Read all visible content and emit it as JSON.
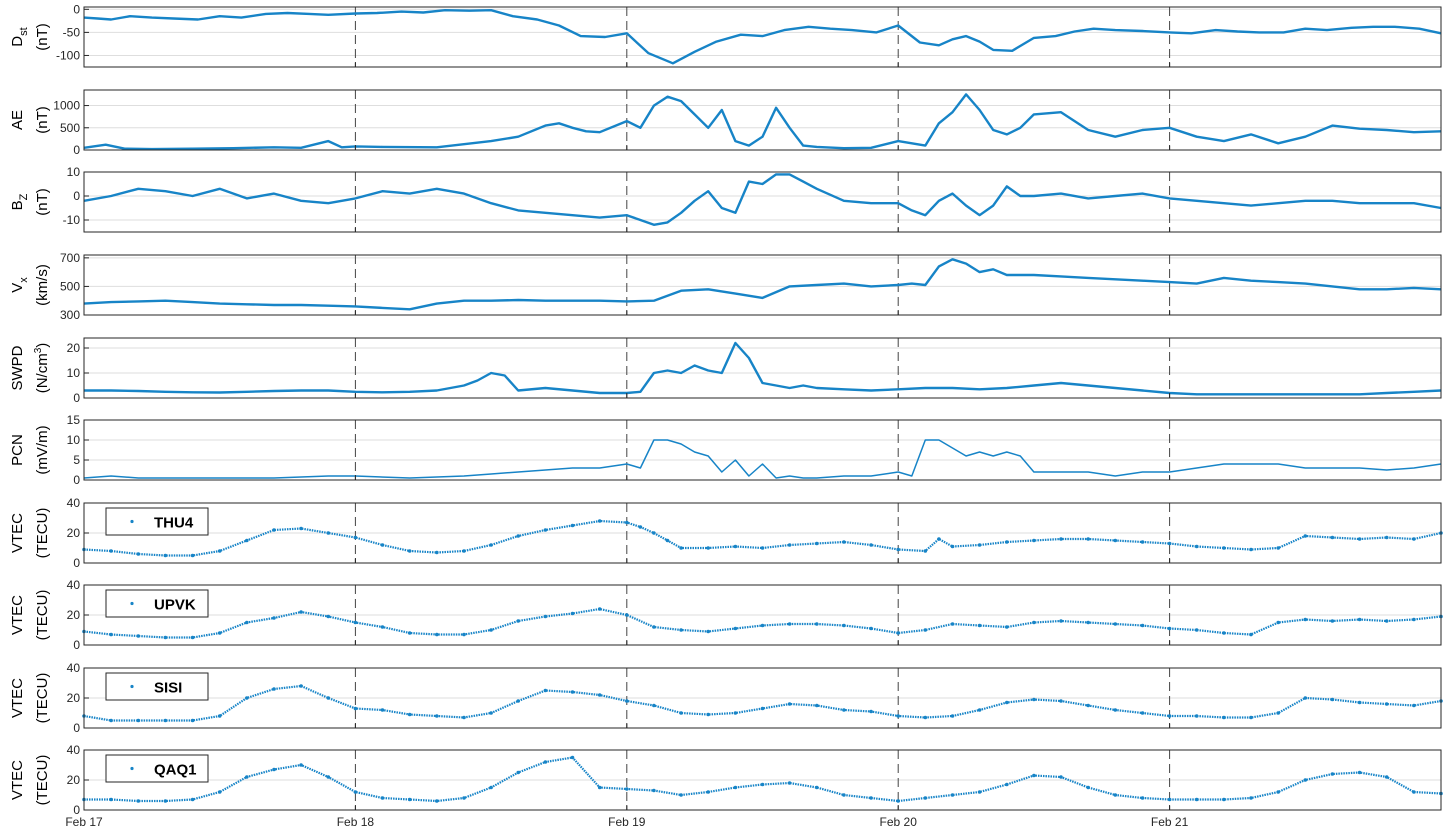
{
  "figure": {
    "x_ticks": [
      "Feb 17",
      "Feb 18",
      "Feb 19",
      "Feb 20",
      "Feb 21"
    ],
    "colors": {
      "series": "#1784c7",
      "axis": "#262626",
      "grid": "#dedede",
      "dash": "#444444"
    }
  },
  "chart_data": [
    {
      "type": "line",
      "ylabel_main": "D",
      "ylabel_sub": "st",
      "ylabel_unit": "(nT)",
      "ylim": [
        -125,
        5
      ],
      "yticks": [
        0,
        -50,
        -100
      ],
      "xlim": [
        0,
        5
      ],
      "grid": true,
      "dashed_days": true,
      "x": [
        0,
        0.05,
        0.1,
        0.17,
        0.25,
        0.33,
        0.42,
        0.5,
        0.58,
        0.67,
        0.75,
        0.83,
        0.9,
        1.0,
        1.08,
        1.17,
        1.25,
        1.33,
        1.42,
        1.5,
        1.58,
        1.67,
        1.75,
        1.83,
        1.92,
        2.0,
        2.08,
        2.17,
        2.25,
        2.33,
        2.42,
        2.5,
        2.58,
        2.67,
        2.75,
        2.83,
        2.92,
        3.0,
        3.08,
        3.15,
        3.2,
        3.25,
        3.3,
        3.35,
        3.42,
        3.5,
        3.58,
        3.65,
        3.72,
        3.8,
        3.9,
        4.0,
        4.08,
        4.17,
        4.25,
        4.33,
        4.42,
        4.5,
        4.58,
        4.67,
        4.75,
        4.83,
        4.92,
        5.0
      ],
      "y": [
        -18,
        -20,
        -22,
        -15,
        -18,
        -20,
        -22,
        -15,
        -18,
        -10,
        -8,
        -10,
        -12,
        -9,
        -8,
        -5,
        -7,
        -2,
        -3,
        -2,
        -15,
        -22,
        -35,
        -58,
        -60,
        -52,
        -95,
        -117,
        -92,
        -70,
        -55,
        -58,
        -45,
        -38,
        -42,
        -45,
        -50,
        -35,
        -72,
        -78,
        -65,
        -58,
        -70,
        -88,
        -90,
        -62,
        -58,
        -48,
        -42,
        -45,
        -47,
        -50,
        -52,
        -45,
        -48,
        -50,
        -50,
        -42,
        -45,
        -40,
        -38,
        -38,
        -42,
        -52
      ]
    },
    {
      "type": "line",
      "ylabel_main": "AE",
      "ylabel_unit": "(nT)",
      "ylim": [
        0,
        1350
      ],
      "yticks": [
        0,
        500,
        1000
      ],
      "xlim": [
        0,
        5
      ],
      "grid": true,
      "dashed_days": true,
      "x": [
        0,
        0.08,
        0.15,
        0.25,
        0.4,
        0.55,
        0.7,
        0.8,
        0.9,
        0.95,
        1.0,
        1.1,
        1.3,
        1.5,
        1.6,
        1.7,
        1.75,
        1.8,
        1.85,
        1.9,
        2.0,
        2.05,
        2.1,
        2.15,
        2.2,
        2.25,
        2.3,
        2.35,
        2.4,
        2.45,
        2.5,
        2.55,
        2.6,
        2.65,
        2.7,
        2.8,
        2.9,
        3.0,
        3.05,
        3.1,
        3.15,
        3.2,
        3.25,
        3.3,
        3.35,
        3.4,
        3.45,
        3.5,
        3.6,
        3.7,
        3.8,
        3.9,
        4.0,
        4.1,
        4.2,
        4.3,
        4.4,
        4.5,
        4.6,
        4.7,
        4.8,
        4.9,
        5.0
      ],
      "y": [
        50,
        120,
        30,
        20,
        30,
        40,
        60,
        50,
        200,
        60,
        80,
        70,
        60,
        200,
        300,
        550,
        600,
        500,
        420,
        400,
        650,
        500,
        1000,
        1200,
        1100,
        800,
        500,
        900,
        200,
        100,
        300,
        950,
        500,
        100,
        70,
        40,
        50,
        200,
        150,
        100,
        600,
        850,
        1250,
        900,
        450,
        350,
        500,
        800,
        850,
        450,
        300,
        450,
        500,
        300,
        200,
        350,
        150,
        300,
        550,
        480,
        450,
        400,
        420
      ]
    },
    {
      "type": "line",
      "ylabel_main": "B",
      "ylabel_sub": "Z",
      "ylabel_unit": "(nT)",
      "ylim": [
        -15,
        10
      ],
      "yticks": [
        10,
        0,
        -10
      ],
      "xlim": [
        0,
        5
      ],
      "grid": true,
      "dashed_days": true,
      "x": [
        0,
        0.1,
        0.2,
        0.3,
        0.4,
        0.5,
        0.6,
        0.7,
        0.8,
        0.9,
        1.0,
        1.1,
        1.2,
        1.3,
        1.4,
        1.5,
        1.6,
        1.7,
        1.8,
        1.9,
        2.0,
        2.05,
        2.1,
        2.15,
        2.2,
        2.25,
        2.3,
        2.35,
        2.4,
        2.45,
        2.5,
        2.55,
        2.6,
        2.65,
        2.7,
        2.8,
        2.9,
        3.0,
        3.05,
        3.1,
        3.15,
        3.2,
        3.25,
        3.3,
        3.35,
        3.4,
        3.45,
        3.5,
        3.6,
        3.7,
        3.8,
        3.9,
        4.0,
        4.1,
        4.2,
        4.3,
        4.4,
        4.5,
        4.6,
        4.7,
        4.8,
        4.9,
        5.0
      ],
      "y": [
        -2,
        0,
        3,
        2,
        0,
        3,
        -1,
        1,
        -2,
        -3,
        -1,
        2,
        1,
        3,
        1,
        -3,
        -6,
        -7,
        -8,
        -9,
        -8,
        -10,
        -12,
        -11,
        -7,
        -2,
        2,
        -5,
        -7,
        6,
        5,
        9,
        9,
        6,
        3,
        -2,
        -3,
        -3,
        -6,
        -8,
        -2,
        1,
        -4,
        -8,
        -4,
        4,
        0,
        0,
        1,
        -1,
        0,
        1,
        -1,
        -2,
        -3,
        -4,
        -3,
        -2,
        -2,
        -3,
        -3,
        -3,
        -5
      ]
    },
    {
      "type": "line",
      "ylabel_main": "V",
      "ylabel_sub": "x",
      "ylabel_unit": "(km/s)",
      "ylim": [
        300,
        720
      ],
      "yticks": [
        700,
        500,
        300
      ],
      "xlim": [
        0,
        5
      ],
      "grid": true,
      "dashed_days": true,
      "x": [
        0,
        0.1,
        0.2,
        0.3,
        0.4,
        0.5,
        0.6,
        0.7,
        0.8,
        0.9,
        1.0,
        1.1,
        1.2,
        1.3,
        1.4,
        1.5,
        1.6,
        1.7,
        1.8,
        1.9,
        2.0,
        2.1,
        2.2,
        2.3,
        2.4,
        2.5,
        2.6,
        2.7,
        2.8,
        2.9,
        3.0,
        3.05,
        3.1,
        3.15,
        3.2,
        3.25,
        3.3,
        3.35,
        3.4,
        3.5,
        3.6,
        3.7,
        3.8,
        3.9,
        4.0,
        4.1,
        4.2,
        4.3,
        4.4,
        4.5,
        4.6,
        4.7,
        4.8,
        4.9,
        5.0
      ],
      "y": [
        380,
        390,
        395,
        400,
        390,
        380,
        375,
        370,
        370,
        365,
        360,
        350,
        340,
        380,
        400,
        400,
        405,
        400,
        400,
        400,
        395,
        400,
        470,
        480,
        450,
        420,
        500,
        510,
        520,
        500,
        510,
        520,
        510,
        640,
        690,
        660,
        600,
        620,
        580,
        580,
        570,
        560,
        550,
        540,
        530,
        520,
        560,
        540,
        530,
        520,
        500,
        480,
        480,
        490,
        480
      ]
    },
    {
      "type": "line",
      "ylabel_main": "SWPD",
      "ylabel_unit": "(N/cm",
      "ylabel_sup": "3",
      "ylabel_unit_close": ")",
      "ylim": [
        0,
        24
      ],
      "yticks": [
        0,
        10,
        20
      ],
      "xlim": [
        0,
        5
      ],
      "grid": true,
      "dashed_days": true,
      "x": [
        0,
        0.1,
        0.2,
        0.3,
        0.4,
        0.5,
        0.6,
        0.7,
        0.8,
        0.9,
        1.0,
        1.1,
        1.2,
        1.3,
        1.35,
        1.4,
        1.45,
        1.5,
        1.55,
        1.6,
        1.7,
        1.8,
        1.9,
        2.0,
        2.05,
        2.1,
        2.15,
        2.2,
        2.25,
        2.3,
        2.35,
        2.4,
        2.45,
        2.5,
        2.55,
        2.6,
        2.65,
        2.7,
        2.8,
        2.9,
        3.0,
        3.1,
        3.2,
        3.3,
        3.4,
        3.5,
        3.6,
        3.7,
        3.8,
        3.9,
        4.0,
        4.1,
        4.2,
        4.3,
        4.4,
        4.5,
        4.6,
        4.7,
        4.8,
        4.9,
        5.0
      ],
      "y": [
        3,
        3,
        2.8,
        2.5,
        2.3,
        2.2,
        2.5,
        2.8,
        3,
        3,
        2.5,
        2.3,
        2.5,
        3,
        4,
        5,
        7,
        10,
        9,
        3,
        4,
        3,
        2,
        2,
        2.5,
        10,
        11,
        10,
        13,
        11,
        10,
        22,
        16,
        6,
        5,
        4,
        5,
        4,
        3.5,
        3,
        3.5,
        4,
        4,
        3.5,
        4,
        5,
        6,
        5,
        4,
        3,
        2,
        1.5,
        1.5,
        1.5,
        1.5,
        1.5,
        1.5,
        1.5,
        2,
        2.5,
        3
      ]
    },
    {
      "type": "line",
      "ylabel_main": "PCN",
      "ylabel_unit": "(mV/m)",
      "ylim": [
        0,
        15
      ],
      "yticks": [
        0,
        5,
        10,
        15
      ],
      "xlim": [
        0,
        5
      ],
      "grid": true,
      "dashed_days": true,
      "x": [
        0,
        0.1,
        0.2,
        0.3,
        0.5,
        0.7,
        0.9,
        1.0,
        1.2,
        1.4,
        1.5,
        1.6,
        1.7,
        1.8,
        1.9,
        2.0,
        2.05,
        2.1,
        2.15,
        2.2,
        2.25,
        2.3,
        2.35,
        2.4,
        2.45,
        2.5,
        2.55,
        2.6,
        2.65,
        2.7,
        2.8,
        2.9,
        3.0,
        3.05,
        3.1,
        3.15,
        3.2,
        3.25,
        3.3,
        3.35,
        3.4,
        3.45,
        3.5,
        3.55,
        3.6,
        3.7,
        3.8,
        3.9,
        4.0,
        4.1,
        4.2,
        4.3,
        4.4,
        4.5,
        4.6,
        4.7,
        4.8,
        4.9,
        5.0
      ],
      "y": [
        0.5,
        1,
        0.5,
        0.5,
        0.5,
        0.5,
        1,
        1,
        0.5,
        1,
        1.5,
        2,
        2.5,
        3,
        3,
        4,
        3,
        10,
        10,
        9,
        7,
        6,
        2,
        5,
        1,
        4,
        0.5,
        1,
        0.5,
        0.5,
        1,
        1,
        2,
        1,
        10,
        10,
        8,
        6,
        7,
        6,
        7,
        6,
        2,
        2,
        2,
        2,
        1,
        2,
        2,
        3,
        4,
        4,
        4,
        3,
        3,
        3,
        2.5,
        3,
        4
      ]
    },
    {
      "type": "scatter",
      "ylabel_main": "VTEC",
      "ylabel_unit": "(TECU)",
      "legend": "THU4",
      "legend_position": "top-left",
      "ylim": [
        0,
        40
      ],
      "yticks": [
        0,
        20,
        40
      ],
      "xlim": [
        0,
        5
      ],
      "grid": true,
      "dashed_days": true,
      "x": [
        0,
        0.1,
        0.2,
        0.3,
        0.4,
        0.5,
        0.6,
        0.7,
        0.8,
        0.9,
        1.0,
        1.1,
        1.2,
        1.3,
        1.4,
        1.5,
        1.6,
        1.7,
        1.8,
        1.9,
        2.0,
        2.05,
        2.1,
        2.15,
        2.2,
        2.3,
        2.4,
        2.5,
        2.6,
        2.7,
        2.8,
        2.9,
        3.0,
        3.1,
        3.15,
        3.2,
        3.3,
        3.4,
        3.5,
        3.6,
        3.7,
        3.8,
        3.9,
        4.0,
        4.1,
        4.2,
        4.3,
        4.4,
        4.5,
        4.6,
        4.7,
        4.8,
        4.9,
        5.0
      ],
      "y": [
        9,
        8,
        6,
        5,
        5,
        8,
        15,
        22,
        23,
        20,
        17,
        12,
        8,
        7,
        8,
        12,
        18,
        22,
        25,
        28,
        27,
        24,
        20,
        15,
        10,
        10,
        11,
        10,
        12,
        13,
        14,
        12,
        9,
        8,
        16,
        11,
        12,
        14,
        15,
        16,
        16,
        15,
        14,
        13,
        11,
        10,
        9,
        10,
        18,
        17,
        16,
        17,
        16,
        20
      ]
    },
    {
      "type": "scatter",
      "ylabel_main": "VTEC",
      "ylabel_unit": "(TECU)",
      "legend": "UPVK",
      "legend_position": "top-left",
      "ylim": [
        0,
        40
      ],
      "yticks": [
        0,
        20,
        40
      ],
      "xlim": [
        0,
        5
      ],
      "grid": true,
      "dashed_days": true,
      "x": [
        0,
        0.1,
        0.2,
        0.3,
        0.4,
        0.5,
        0.6,
        0.7,
        0.8,
        0.9,
        1.0,
        1.1,
        1.2,
        1.3,
        1.4,
        1.5,
        1.6,
        1.7,
        1.8,
        1.9,
        2.0,
        2.1,
        2.2,
        2.3,
        2.4,
        2.5,
        2.6,
        2.7,
        2.8,
        2.9,
        3.0,
        3.1,
        3.2,
        3.3,
        3.4,
        3.5,
        3.6,
        3.7,
        3.8,
        3.9,
        4.0,
        4.1,
        4.2,
        4.3,
        4.4,
        4.5,
        4.6,
        4.7,
        4.8,
        4.9,
        5.0
      ],
      "y": [
        9,
        7,
        6,
        5,
        5,
        8,
        15,
        18,
        22,
        19,
        15,
        12,
        8,
        7,
        7,
        10,
        16,
        19,
        21,
        24,
        20,
        12,
        10,
        9,
        11,
        13,
        14,
        14,
        13,
        11,
        8,
        10,
        14,
        13,
        12,
        15,
        16,
        15,
        14,
        13,
        11,
        10,
        8,
        7,
        15,
        17,
        16,
        17,
        16,
        17,
        19
      ]
    },
    {
      "type": "scatter",
      "ylabel_main": "VTEC",
      "ylabel_unit": "(TECU)",
      "legend": "SISI",
      "legend_position": "top-left",
      "ylim": [
        0,
        40
      ],
      "yticks": [
        0,
        20,
        40
      ],
      "xlim": [
        0,
        5
      ],
      "grid": true,
      "dashed_days": true,
      "x": [
        0,
        0.1,
        0.2,
        0.3,
        0.4,
        0.5,
        0.6,
        0.7,
        0.8,
        0.9,
        1.0,
        1.1,
        1.2,
        1.3,
        1.4,
        1.5,
        1.6,
        1.7,
        1.8,
        1.9,
        2.0,
        2.1,
        2.2,
        2.3,
        2.4,
        2.5,
        2.6,
        2.7,
        2.8,
        2.9,
        3.0,
        3.1,
        3.2,
        3.3,
        3.4,
        3.5,
        3.6,
        3.7,
        3.8,
        3.9,
        4.0,
        4.1,
        4.2,
        4.3,
        4.4,
        4.5,
        4.6,
        4.7,
        4.8,
        4.9,
        5.0
      ],
      "y": [
        8,
        5,
        5,
        5,
        5,
        8,
        20,
        26,
        28,
        20,
        13,
        12,
        9,
        8,
        7,
        10,
        18,
        25,
        24,
        22,
        18,
        15,
        10,
        9,
        10,
        13,
        16,
        15,
        12,
        11,
        8,
        7,
        8,
        12,
        17,
        19,
        18,
        15,
        12,
        10,
        8,
        8,
        7,
        7,
        10,
        20,
        19,
        17,
        16,
        15,
        18
      ]
    },
    {
      "type": "scatter",
      "ylabel_main": "VTEC",
      "ylabel_unit": "(TECU)",
      "legend": "QAQ1",
      "legend_position": "top-left",
      "ylim": [
        0,
        40
      ],
      "yticks": [
        0,
        20,
        40
      ],
      "xlim": [
        0,
        5
      ],
      "grid": true,
      "dashed_days": true,
      "x": [
        0,
        0.1,
        0.2,
        0.3,
        0.4,
        0.5,
        0.6,
        0.7,
        0.8,
        0.9,
        1.0,
        1.1,
        1.2,
        1.3,
        1.4,
        1.5,
        1.6,
        1.7,
        1.8,
        1.9,
        2.0,
        2.1,
        2.2,
        2.3,
        2.4,
        2.5,
        2.6,
        2.7,
        2.8,
        2.9,
        3.0,
        3.1,
        3.2,
        3.3,
        3.4,
        3.5,
        3.6,
        3.7,
        3.8,
        3.9,
        4.0,
        4.1,
        4.2,
        4.3,
        4.4,
        4.5,
        4.6,
        4.7,
        4.8,
        4.9,
        5.0
      ],
      "y": [
        7,
        7,
        6,
        6,
        7,
        12,
        22,
        27,
        30,
        22,
        12,
        8,
        7,
        6,
        8,
        15,
        25,
        32,
        35,
        15,
        14,
        13,
        10,
        12,
        15,
        17,
        18,
        15,
        10,
        8,
        6,
        8,
        10,
        12,
        17,
        23,
        22,
        15,
        10,
        8,
        7,
        7,
        7,
        8,
        12,
        20,
        24,
        25,
        22,
        12,
        11
      ]
    }
  ]
}
